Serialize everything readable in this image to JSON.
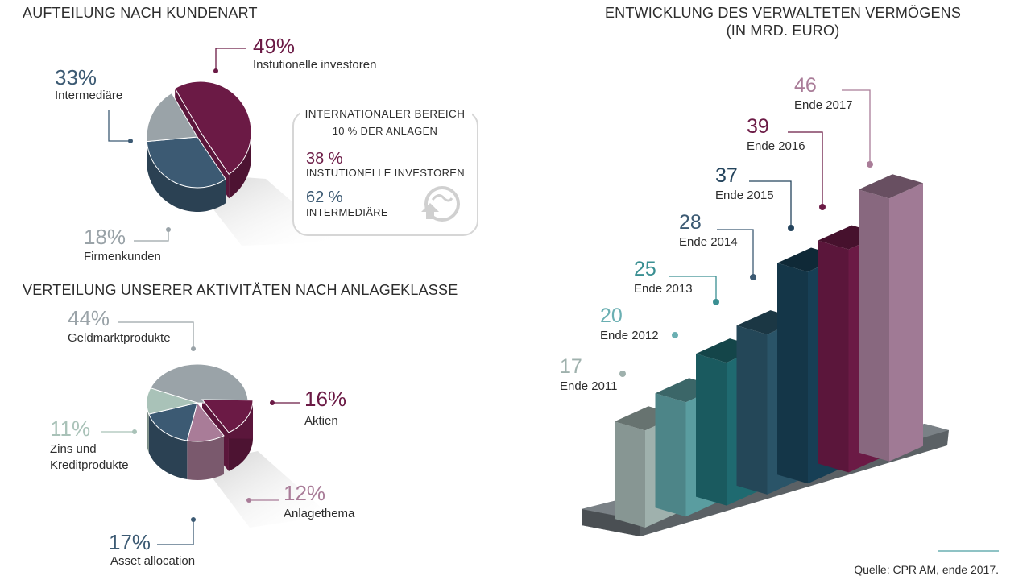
{
  "colors": {
    "plum": "#6b1a45",
    "slate": "#3c5a73",
    "grey": "#9aa3a8",
    "mauve": "#a97c98",
    "mint": "#a9c2b8",
    "navy": "#23435c",
    "teal_light": "#6aafb2"
  },
  "chart_data": [
    {
      "type": "pie",
      "title": "AUFTEILUNG NACH KUNDENART",
      "slices": [
        {
          "label": "Instutionelle investoren",
          "value": 49,
          "pct_label": "49%",
          "color": "#6b1a45"
        },
        {
          "label": "Intermediäre",
          "value": 33,
          "pct_label": "33%",
          "color": "#3c5a73"
        },
        {
          "label": "Firmenkunden",
          "value": 18,
          "pct_label": "18%",
          "color": "#9aa3a8"
        }
      ],
      "info_box": {
        "title": "INTERNATIONALER BEREICH",
        "subtitle": "10 % DER ANLAGEN",
        "items": [
          {
            "pct": "38 %",
            "label": "INSTUTIONELLE INVESTOREN",
            "color": "#6b1a45"
          },
          {
            "pct": "62 %",
            "label": "INTERMEDIÄRE",
            "color": "#3c5a73"
          }
        ],
        "icon": "globe-upload-icon"
      }
    },
    {
      "type": "pie",
      "title": "VERTEILUNG UNSERER AKTIVITÄTEN NACH ANLAGEKLASSE",
      "slices": [
        {
          "label": "Geldmarktprodukte",
          "value": 44,
          "pct_label": "44%",
          "color": "#9aa3a8"
        },
        {
          "label": "Aktien",
          "value": 16,
          "pct_label": "16%",
          "color": "#6b1a45"
        },
        {
          "label": "Anlagethema",
          "value": 12,
          "pct_label": "12%",
          "color": "#a97c98"
        },
        {
          "label": "Asset allocation",
          "value": 17,
          "pct_label": "17%",
          "color": "#3c5a73"
        },
        {
          "label": "Zins und Kreditprodukte",
          "value": 11,
          "pct_label": "11%",
          "color": "#a9c2b8"
        }
      ]
    },
    {
      "type": "bar",
      "title": "ENTWICKLUNG DES VERWALTETEN VERMÖGENS",
      "subtitle": "(IN MRD. EURO)",
      "categories": [
        "Ende 2011",
        "Ende 2012",
        "Ende 2013",
        "Ende 2014",
        "Ende 2015",
        "Ende 2016",
        "Ende 2017"
      ],
      "values": [
        17,
        20,
        25,
        28,
        37,
        39,
        46
      ],
      "colors": [
        "#9fb1ad",
        "#5a9da0",
        "#1f6a70",
        "#2a5468",
        "#173f55",
        "#6b1a45",
        "#a07a95"
      ],
      "label_colors": [
        "#9fb1ad",
        "#6aafb2",
        "#3a8f92",
        "#3c5a73",
        "#23435c",
        "#6b1a45",
        "#a97c98"
      ]
    }
  ],
  "source": "Quelle: CPR AM, ende 2017."
}
